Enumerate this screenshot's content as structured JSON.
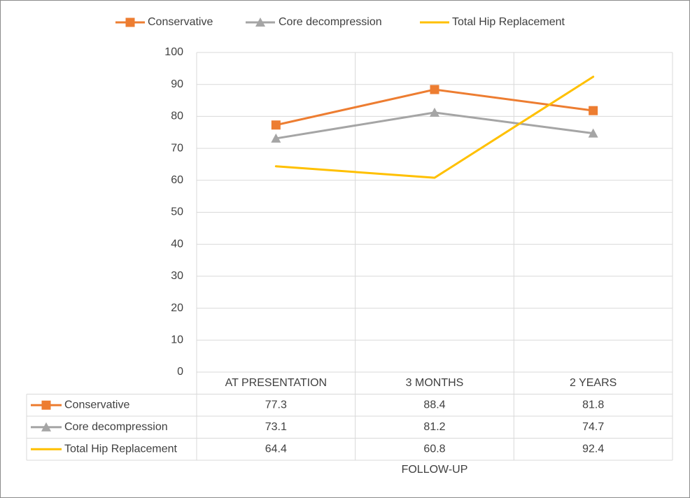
{
  "chart_data": {
    "type": "line",
    "categories": [
      "AT PRESENTATION",
      "3 MONTHS",
      "2 YEARS"
    ],
    "series": [
      {
        "name": "Conservative",
        "values": [
          77.3,
          88.4,
          81.8
        ],
        "color": "#ED7D31",
        "marker": "square"
      },
      {
        "name": "Core decompression",
        "values": [
          73.1,
          81.2,
          74.7
        ],
        "color": "#A5A5A5",
        "marker": "triangle"
      },
      {
        "name": "Total Hip Replacement",
        "values": [
          64.4,
          60.8,
          92.4
        ],
        "color": "#FFC000",
        "marker": "none"
      }
    ],
    "yticks": [
      0,
      10,
      20,
      30,
      40,
      50,
      60,
      70,
      80,
      90,
      100
    ],
    "ylim": [
      0,
      100
    ],
    "xlabel": "FOLLOW-UP",
    "ylabel": "",
    "title": "",
    "grid": true,
    "legend_position": "top",
    "data_table": true,
    "table_values": [
      [
        "77.3",
        "88.4",
        "81.8"
      ],
      [
        "73.1",
        "81.2",
        "74.7"
      ],
      [
        "64.4",
        "60.8",
        "92.4"
      ]
    ]
  }
}
